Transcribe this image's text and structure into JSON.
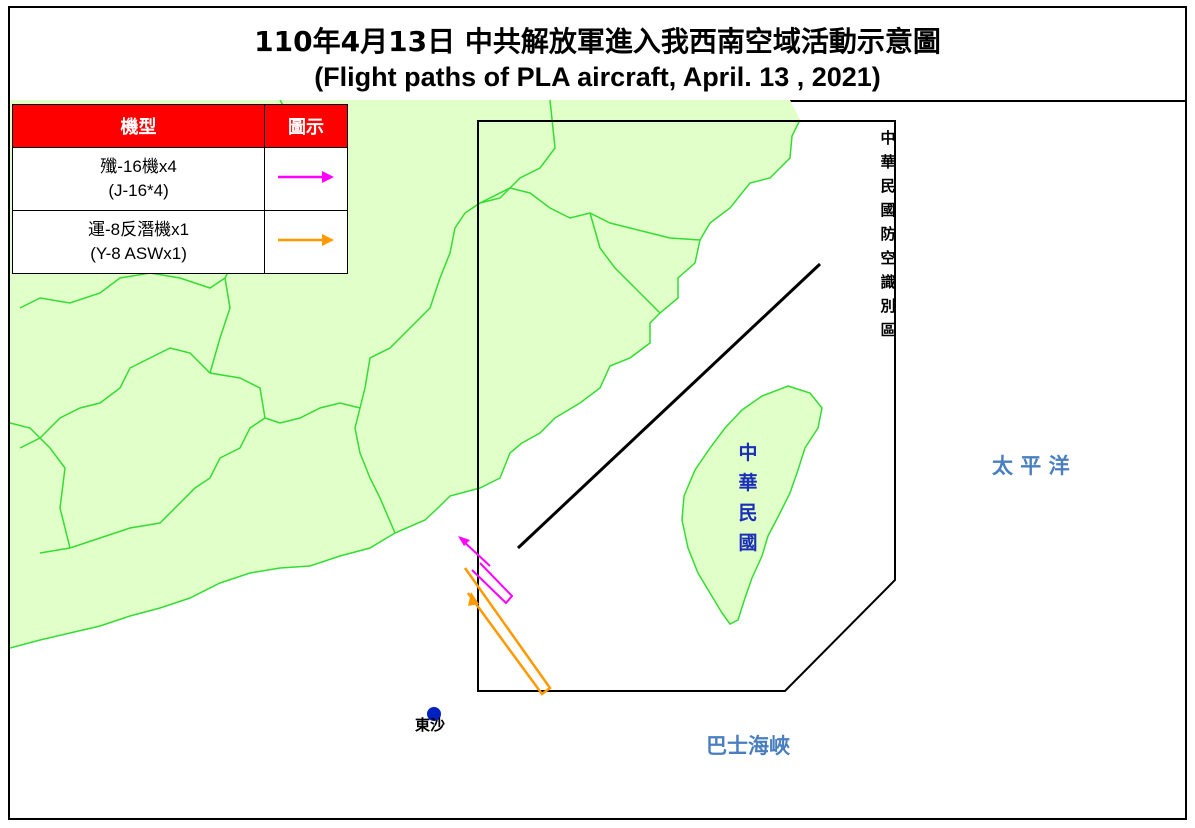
{
  "title": {
    "zh": "110年4月13日 中共解放軍進入我西南空域活動示意圖",
    "en": "(Flight paths of PLA aircraft, April. 13 , 2021)"
  },
  "legend": {
    "header_type": "機型",
    "header_symbol": "圖示",
    "rows": [
      {
        "line1": "殲-16機x4",
        "line2": "(J-16*4)",
        "color": "#ff00ff",
        "icon": "magenta-arrow-icon"
      },
      {
        "line1": "運-8反潛機x1",
        "line2": "(Y-8 ASWx1)",
        "color": "#ff9900",
        "icon": "orange-arrow-icon"
      }
    ]
  },
  "labels": {
    "adiz": "中華民國防空識別區",
    "roc": "中華民國",
    "pacific": "太 平 洋",
    "bashi": "巴士海峽",
    "pratas": "東沙"
  },
  "colors": {
    "land": "#e1ffc8",
    "border": "#33dd33",
    "sea_label": "#4a7fbf",
    "roc_label": "#1a2fb8",
    "j16_track": "#ff00ff",
    "y8_track": "#ff9900",
    "pratas_marker": "#0020c0",
    "legend_header": "#ff0000"
  }
}
